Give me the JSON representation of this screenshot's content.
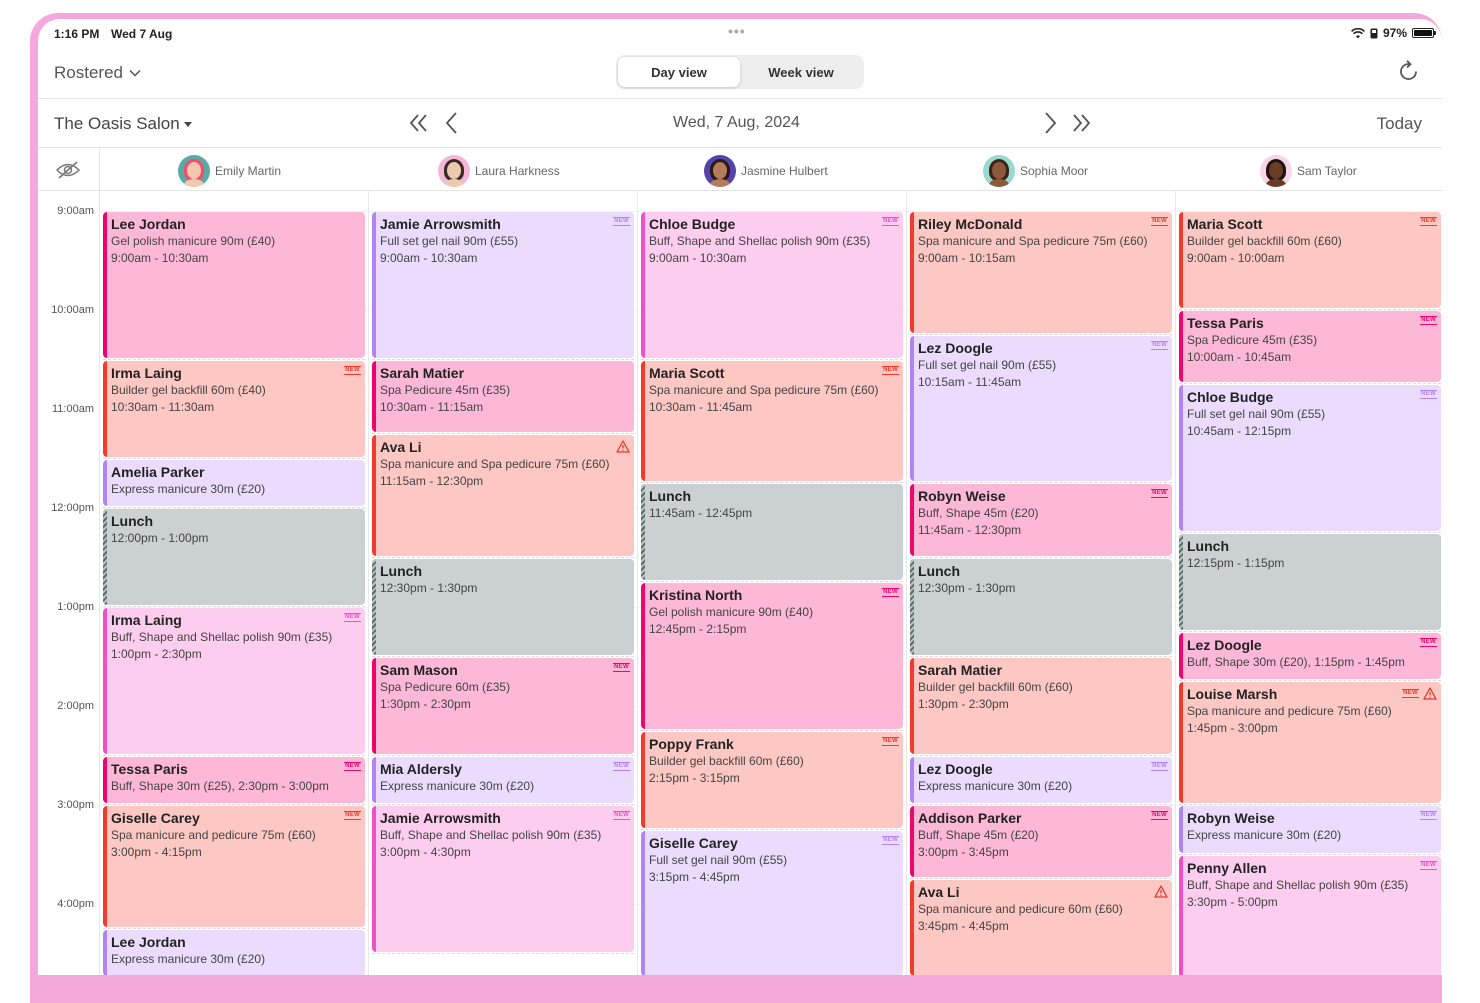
{
  "status_bar": {
    "time": "1:16 PM",
    "date": "Wed 7 Aug",
    "dots": "•••",
    "battery": "97%"
  },
  "toolbar": {
    "filter_label": "Rostered",
    "day_view": "Day view",
    "week_view": "Week view",
    "active_view": "day"
  },
  "nav": {
    "salon": "The Oasis Salon",
    "date": "Wed, 7 Aug, 2024",
    "today": "Today"
  },
  "time_labels": [
    "9:00am",
    "10:00am",
    "11:00am",
    "12:00pm",
    "1:00pm",
    "2:00pm",
    "3:00pm",
    "4:00pm"
  ],
  "colors": {
    "pink": {
      "bg": "#fdb8d8",
      "bar": "#f0056e"
    },
    "coral": {
      "bg": "#fdc8c4",
      "bar": "#f43a2a"
    },
    "lavender": {
      "bg": "#ebdcfd",
      "bar": "#b084f6"
    },
    "light_pink": {
      "bg": "#fdcdef",
      "bar": "#f04fc6"
    },
    "lunch": {
      "bg": "#cbd1d3",
      "bar": "#6d7a78"
    }
  },
  "staff": [
    {
      "name": "Emily Martin",
      "avatar_bg": "#5aa9a6",
      "hair": "#f0506a",
      "skin": "#f3c7b0"
    },
    {
      "name": "Laura Harkness",
      "avatar_bg": "#f5b6d8",
      "hair": "#3a2a26",
      "skin": "#eccab0"
    },
    {
      "name": "Jasmine Hulbert",
      "avatar_bg": "#5544a8",
      "hair": "#2a1a18",
      "skin": "#b57c5c"
    },
    {
      "name": "Sophia Moor",
      "avatar_bg": "#9ad8d2",
      "hair": "#3a2418",
      "skin": "#8c5a3a"
    },
    {
      "name": "Sam Taylor",
      "avatar_bg": "#f8d4e6",
      "hair": "#1c1210",
      "skin": "#6a3c26"
    }
  ],
  "columns": [
    {
      "appointments": [
        {
          "name": "Lee Jordan",
          "service": "Gel polish manicure 90m (£40)",
          "time": "9:00am - 10:30am",
          "start": 0,
          "dur": 90,
          "color": "pink",
          "new": false,
          "warn": false
        },
        {
          "name": "Irma Laing",
          "service": "Builder gel backfill 60m (£40)",
          "time": "10:30am - 11:30am",
          "start": 90,
          "dur": 60,
          "color": "coral",
          "new": true,
          "warn": false
        },
        {
          "name": "Amelia Parker",
          "service": "Express manicure 30m (£20)",
          "time": "",
          "start": 150,
          "dur": 30,
          "color": "lavender",
          "new": false,
          "warn": false
        },
        {
          "name": "Lunch",
          "service": "12:00pm - 1:00pm",
          "time": "",
          "start": 180,
          "dur": 60,
          "color": "lunch",
          "new": false,
          "warn": false
        },
        {
          "name": "Irma Laing",
          "service": "Buff, Shape and Shellac polish 90m (£35)",
          "time": "1:00pm - 2:30pm",
          "start": 240,
          "dur": 90,
          "color": "light_pink",
          "new": true,
          "warn": false
        },
        {
          "name": "Tessa Paris",
          "service": "Buff, Shape 30m (£25), 2:30pm - 3:00pm",
          "time": "",
          "start": 330,
          "dur": 30,
          "color": "pink",
          "new": true,
          "warn": false
        },
        {
          "name": "Giselle Carey",
          "service": "Spa manicure and pedicure 75m (£60)",
          "time": "3:00pm - 4:15pm",
          "start": 360,
          "dur": 75,
          "color": "coral",
          "new": true,
          "warn": false
        },
        {
          "name": "Lee Jordan",
          "service": "Express manicure 30m (£20)",
          "time": "",
          "start": 435,
          "dur": 30,
          "color": "lavender",
          "new": false,
          "warn": false
        }
      ]
    },
    {
      "appointments": [
        {
          "name": "Jamie Arrowsmith",
          "service": "Full set gel nail 90m (£55)",
          "time": "9:00am - 10:30am",
          "start": 0,
          "dur": 90,
          "color": "lavender",
          "new": true,
          "warn": false
        },
        {
          "name": "Sarah Matier",
          "service": "Spa Pedicure 45m (£35)",
          "time": "10:30am - 11:15am",
          "start": 90,
          "dur": 45,
          "color": "pink",
          "new": false,
          "warn": false
        },
        {
          "name": "Ava Li",
          "service": "Spa manicure and Spa pedicure 75m (£60)",
          "time": "11:15am - 12:30pm",
          "start": 135,
          "dur": 75,
          "color": "coral",
          "new": false,
          "warn": true
        },
        {
          "name": "Lunch",
          "service": "12:30pm - 1:30pm",
          "time": "",
          "start": 210,
          "dur": 60,
          "color": "lunch",
          "new": false,
          "warn": false
        },
        {
          "name": "Sam Mason",
          "service": "Spa Pedicure 60m (£35)",
          "time": "1:30pm - 2:30pm",
          "start": 270,
          "dur": 60,
          "color": "pink",
          "new": true,
          "warn": false
        },
        {
          "name": "Mia Aldersly",
          "service": "Express manicure 30m (£20)",
          "time": "",
          "start": 330,
          "dur": 30,
          "color": "lavender",
          "new": true,
          "warn": false
        },
        {
          "name": "Jamie Arrowsmith",
          "service": "Buff, Shape and Shellac polish 90m (£35)",
          "time": "3:00pm - 4:30pm",
          "start": 360,
          "dur": 90,
          "color": "light_pink",
          "new": true,
          "warn": false
        }
      ]
    },
    {
      "appointments": [
        {
          "name": "Chloe Budge",
          "service": "Buff, Shape and Shellac polish 90m (£35)",
          "time": "9:00am - 10:30am",
          "start": 0,
          "dur": 90,
          "color": "light_pink",
          "new": true,
          "warn": false
        },
        {
          "name": "Maria Scott",
          "service": "Spa manicure and Spa pedicure 75m (£60)",
          "time": "10:30am - 11:45am",
          "start": 90,
          "dur": 75,
          "color": "coral",
          "new": true,
          "warn": false
        },
        {
          "name": "Lunch",
          "service": "11:45am - 12:45pm",
          "time": "",
          "start": 165,
          "dur": 60,
          "color": "lunch",
          "new": false,
          "warn": false
        },
        {
          "name": "Kristina North",
          "service": "Gel polish manicure 90m (£40)",
          "time": "12:45pm - 2:15pm",
          "start": 225,
          "dur": 90,
          "color": "pink",
          "new": true,
          "warn": false
        },
        {
          "name": "Poppy Frank",
          "service": "Builder gel backfill 60m (£60)",
          "time": "2:15pm - 3:15pm",
          "start": 315,
          "dur": 60,
          "color": "coral",
          "new": true,
          "warn": false
        },
        {
          "name": "Giselle Carey",
          "service": "Full set gel nail 90m (£55)",
          "time": "3:15pm - 4:45pm",
          "start": 375,
          "dur": 90,
          "color": "lavender",
          "new": true,
          "warn": false
        }
      ]
    },
    {
      "appointments": [
        {
          "name": "Riley McDonald",
          "service": "Spa manicure and Spa pedicure 75m (£60)",
          "time": "9:00am - 10:15am",
          "start": 0,
          "dur": 75,
          "color": "coral",
          "new": true,
          "warn": false
        },
        {
          "name": "Lez Doogle",
          "service": "Full set gel nail 90m (£55)",
          "time": "10:15am - 11:45am",
          "start": 75,
          "dur": 90,
          "color": "lavender",
          "new": true,
          "warn": false
        },
        {
          "name": "Robyn Weise",
          "service": "Buff, Shape 45m (£20)",
          "time": "11:45am - 12:30pm",
          "start": 165,
          "dur": 45,
          "color": "pink",
          "new": true,
          "warn": false
        },
        {
          "name": "Lunch",
          "service": "12:30pm - 1:30pm",
          "time": "",
          "start": 210,
          "dur": 60,
          "color": "lunch",
          "new": false,
          "warn": false
        },
        {
          "name": "Sarah Matier",
          "service": "Builder gel backfill 60m (£60)",
          "time": "1:30pm - 2:30pm",
          "start": 270,
          "dur": 60,
          "color": "coral",
          "new": false,
          "warn": false
        },
        {
          "name": "Lez Doogle",
          "service": "Express manicure 30m (£20)",
          "time": "",
          "start": 330,
          "dur": 30,
          "color": "lavender",
          "new": true,
          "warn": false
        },
        {
          "name": "Addison Parker",
          "service": "Buff, Shape 45m (£20)",
          "time": "3:00pm - 3:45pm",
          "start": 360,
          "dur": 45,
          "color": "pink",
          "new": true,
          "warn": false
        },
        {
          "name": "Ava Li",
          "service": "Spa manicure and pedicure 60m (£60)",
          "time": "3:45pm - 4:45pm",
          "start": 405,
          "dur": 60,
          "color": "coral",
          "new": false,
          "warn": true
        }
      ]
    },
    {
      "appointments": [
        {
          "name": "Maria Scott",
          "service": "Builder gel backfill 60m (£60)",
          "time": "9:00am - 10:00am",
          "start": 0,
          "dur": 60,
          "color": "coral",
          "new": true,
          "warn": false
        },
        {
          "name": "Tessa Paris",
          "service": "Spa Pedicure 45m (£35)",
          "time": "10:00am - 10:45am",
          "start": 60,
          "dur": 45,
          "color": "pink",
          "new": true,
          "warn": false
        },
        {
          "name": "Chloe Budge",
          "service": "Full set gel nail 90m (£55)",
          "time": "10:45am - 12:15pm",
          "start": 105,
          "dur": 90,
          "color": "lavender",
          "new": true,
          "warn": false
        },
        {
          "name": "Lunch",
          "service": "12:15pm - 1:15pm",
          "time": "",
          "start": 195,
          "dur": 60,
          "color": "lunch",
          "new": false,
          "warn": false
        },
        {
          "name": "Lez Doogle",
          "service": "Buff, Shape 30m (£20), 1:15pm - 1:45pm",
          "time": "",
          "start": 255,
          "dur": 30,
          "color": "pink",
          "new": true,
          "warn": false
        },
        {
          "name": "Louise Marsh",
          "service": "Spa manicure and pedicure 75m (£60)",
          "time": "1:45pm - 3:00pm",
          "start": 285,
          "dur": 75,
          "color": "coral",
          "new": true,
          "warn": true
        },
        {
          "name": "Robyn Weise",
          "service": "Express manicure 30m (£20)",
          "time": "",
          "start": 360,
          "dur": 30,
          "color": "lavender",
          "new": true,
          "warn": false
        },
        {
          "name": "Penny Allen",
          "service": "Buff, Shape and Shellac polish 90m (£35)",
          "time": "3:30pm - 5:00pm",
          "start": 390,
          "dur": 90,
          "color": "light_pink",
          "new": true,
          "warn": false
        }
      ]
    }
  ],
  "badge_text": "NEW"
}
